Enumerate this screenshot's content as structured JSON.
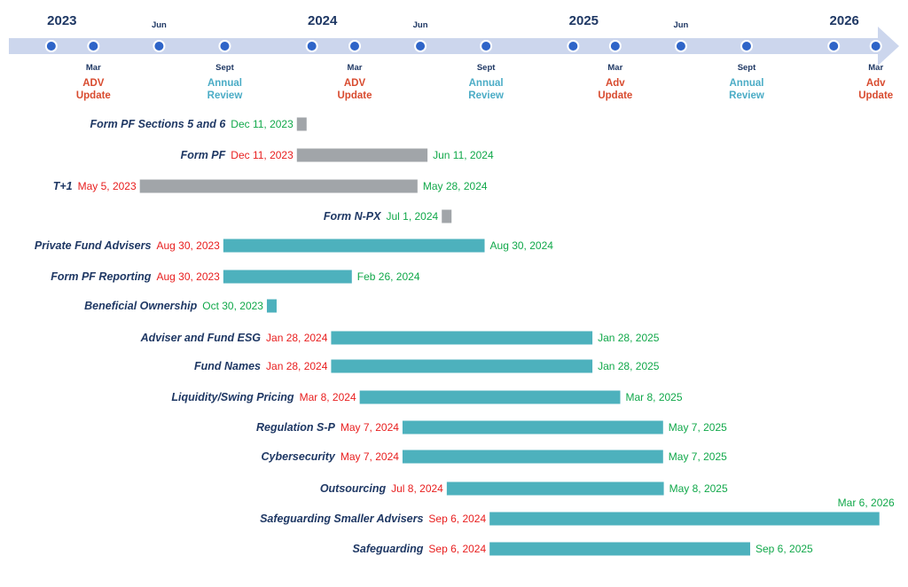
{
  "chart_data": {
    "type": "gantt",
    "x_range": [
      "2022-11-15",
      "2026-03-20"
    ],
    "colors": {
      "axis_band": "#ccd6ed",
      "axis_dot": "#2e64c8",
      "axis_dot_ring": "#ffffff",
      "year_text": "#1f3864",
      "task_name": "#1f3864",
      "start_date": "#e81e1e",
      "end_date": "#11a84a",
      "adv_update": "#d84b2f",
      "annual_review": "#4bacc6",
      "bar_gray": "#a1a5a9",
      "bar_teal": "#4db1bd"
    },
    "timeline": {
      "years": [
        {
          "label": "2023",
          "date": "2023-01-01"
        },
        {
          "label": "2024",
          "date": "2024-01-01"
        },
        {
          "label": "2025",
          "date": "2025-01-01"
        },
        {
          "label": "2026",
          "date": "2026-01-01"
        }
      ],
      "jun_markers": [
        {
          "label": "Jun",
          "date": "2023-06-01"
        },
        {
          "label": "Jun",
          "date": "2024-06-01"
        },
        {
          "label": "Jun",
          "date": "2025-06-01"
        }
      ],
      "dots": [
        "2023-01-01",
        "2023-03-01",
        "2023-06-01",
        "2023-09-01",
        "2024-01-01",
        "2024-03-01",
        "2024-06-01",
        "2024-09-01",
        "2025-01-01",
        "2025-03-01",
        "2025-06-01",
        "2025-09-01",
        "2026-01-01",
        "2026-03-01"
      ],
      "events": [
        {
          "month": "Mar",
          "date": "2023-03-01",
          "lines": [
            "ADV",
            "Update"
          ],
          "kind": "adv"
        },
        {
          "month": "Sept",
          "date": "2023-09-01",
          "lines": [
            "Annual",
            "Review"
          ],
          "kind": "review"
        },
        {
          "month": "Mar",
          "date": "2024-03-01",
          "lines": [
            "ADV",
            "Update"
          ],
          "kind": "adv"
        },
        {
          "month": "Sept",
          "date": "2024-09-01",
          "lines": [
            "Annual",
            "Review"
          ],
          "kind": "review"
        },
        {
          "month": "Mar",
          "date": "2025-03-01",
          "lines": [
            "Adv",
            "Update"
          ],
          "kind": "adv"
        },
        {
          "month": "Sept",
          "date": "2025-09-01",
          "lines": [
            "Annual",
            "Review"
          ],
          "kind": "review"
        },
        {
          "month": "Mar",
          "date": "2026-03-01",
          "lines": [
            "Adv",
            "Update"
          ],
          "kind": "adv"
        }
      ]
    },
    "tasks": [
      {
        "name": "Form PF Sections 5 and 6",
        "start": "2023-12-11",
        "end": "2023-12-11",
        "start_label": "",
        "end_label": "Dec 11, 2023",
        "end_side": "left",
        "color": "gray"
      },
      {
        "name": "Form PF",
        "start": "2023-12-11",
        "end": "2024-06-11",
        "start_label": "Dec 11, 2023",
        "end_label": "Jun 11, 2024",
        "end_side": "right",
        "color": "gray"
      },
      {
        "name": "T+1",
        "start": "2023-05-05",
        "end": "2024-05-28",
        "start_label": "May 5, 2023",
        "end_label": "May 28, 2024",
        "end_side": "right",
        "color": "gray"
      },
      {
        "name": "Form N-PX",
        "start": "2024-07-01",
        "end": "2024-07-01",
        "start_label": "",
        "end_label": "Jul 1, 2024",
        "end_side": "left",
        "color": "gray"
      },
      {
        "name": "Private Fund Advisers",
        "start": "2023-08-30",
        "end": "2024-08-30",
        "start_label": "Aug 30, 2023",
        "end_label": "Aug 30, 2024",
        "end_side": "right",
        "color": "teal"
      },
      {
        "name": "Form PF Reporting",
        "start": "2023-08-30",
        "end": "2024-02-26",
        "start_label": "Aug 30, 2023",
        "end_label": "Feb 26, 2024",
        "end_side": "right",
        "color": "teal"
      },
      {
        "name": "Beneficial Ownership",
        "start": "2023-10-30",
        "end": "2023-10-30",
        "start_label": "",
        "end_label": "Oct 30, 2023",
        "end_side": "left",
        "color": "teal"
      },
      {
        "name": "Adviser and Fund ESG",
        "start": "2024-01-28",
        "end": "2025-01-28",
        "start_label": "Jan 28, 2024",
        "end_label": "Jan 28, 2025",
        "end_side": "right",
        "color": "teal"
      },
      {
        "name": "Fund Names",
        "start": "2024-01-28",
        "end": "2025-01-28",
        "start_label": "Jan 28, 2024",
        "end_label": "Jan 28, 2025",
        "end_side": "right",
        "color": "teal"
      },
      {
        "name": "Liquidity/Swing Pricing",
        "start": "2024-03-08",
        "end": "2025-03-08",
        "start_label": "Mar 8, 2024",
        "end_label": "Mar 8, 2025",
        "end_side": "right",
        "color": "teal"
      },
      {
        "name": "Regulation S-P",
        "start": "2024-05-07",
        "end": "2025-05-07",
        "start_label": "May 7, 2024",
        "end_label": "May 7, 2025",
        "end_side": "right",
        "color": "teal"
      },
      {
        "name": "Cybersecurity",
        "start": "2024-05-07",
        "end": "2025-05-07",
        "start_label": "May 7, 2024",
        "end_label": "May 7, 2025",
        "end_side": "right",
        "color": "teal"
      },
      {
        "name": "Outsourcing",
        "start": "2024-07-08",
        "end": "2025-05-08",
        "start_label": "Jul 8, 2024",
        "end_label": "May 8, 2025",
        "end_side": "right",
        "color": "teal"
      },
      {
        "name": "Safeguarding Smaller Advisers",
        "start": "2024-09-06",
        "end": "2026-03-06",
        "start_label": "Sep 6, 2024",
        "end_label": "Mar 6, 2026",
        "end_side": "above",
        "color": "teal"
      },
      {
        "name": "Safeguarding",
        "start": "2024-09-06",
        "end": "2025-09-06",
        "start_label": "Sep 6, 2024",
        "end_label": "Sep 6, 2025",
        "end_side": "right",
        "color": "teal"
      }
    ]
  }
}
